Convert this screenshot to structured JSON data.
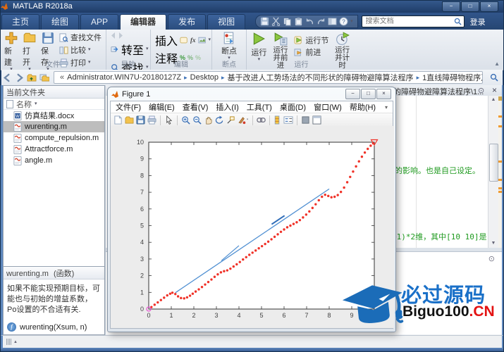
{
  "glyphs": {
    "min": "−",
    "max": "□",
    "close": "×",
    "dropdown": "▾",
    "sep": "▸",
    "laquo": "«",
    "overflow": "⊙",
    "collapse": "▲",
    "scroll_up": "▲",
    "scroll_down": "▼",
    "grip_up": "▲",
    "fx": "fx",
    "percent": "%",
    "help": "?"
  },
  "titlebar": {
    "title": "MATLAB R2018a"
  },
  "ribbon": {
    "tabs": [
      "主页",
      "绘图",
      "APP",
      "编辑器",
      "发布",
      "视图"
    ],
    "active_tab_index": 3,
    "search_placeholder": "搜索文档",
    "login": "登录",
    "file_group": {
      "label": "文件",
      "new": "新建",
      "open": "打开",
      "save": "保存",
      "find_files": "查找文件",
      "compare": "比较",
      "print": "打印"
    },
    "nav_group": {
      "label": "导航",
      "goto": "转至",
      "find": "查找"
    },
    "edit_group": {
      "label": "编辑",
      "insert": "插入",
      "comment": "注释",
      "indent": "缩进"
    },
    "bp_group": {
      "label": "断点",
      "breakpoints": "断点"
    },
    "run_group": {
      "label": "运行",
      "run": "运行",
      "run_advance": "运行并前进",
      "run_section": "运行节",
      "advance": "前进",
      "run_time": "运行并计时"
    }
  },
  "addressbar": {
    "segments": [
      "Administrator.WIN7U-20180127Z",
      "Desktop",
      "基于改进人工势场法的不同形状的障碍物避障算法程序",
      "1直线障碍物程序及结果"
    ]
  },
  "current_folder": {
    "title": "当前文件夹",
    "name_header": "名称",
    "files": [
      {
        "name": "仿真结果.docx",
        "type": "docx"
      },
      {
        "name": "wurenting.m",
        "type": "m",
        "selected": true
      },
      {
        "name": "compute_repulsion.m",
        "type": "m"
      },
      {
        "name": "Attractforce.m",
        "type": "m"
      },
      {
        "name": "angle.m",
        "type": "m"
      }
    ]
  },
  "details": {
    "file": "wurenting.m",
    "kind": "(函数)",
    "text": "如果不能实现预期目标，可能也与初始的增益系数，Po设置的不合适有关.",
    "signature": "wurenting(Xsum, n)"
  },
  "editor": {
    "tab_title": "的障碍物避障算法程序\\1...",
    "comment1": "的影响。也是自己设定。",
    "comment2": "+1)*2维，其中[10 10]是["
  },
  "figure_window": {
    "title": "Figure 1",
    "menu": [
      "文件(F)",
      "编辑(E)",
      "查看(V)",
      "插入(I)",
      "工具(T)",
      "桌面(D)",
      "窗口(W)",
      "帮助(H)"
    ]
  },
  "watermark": {
    "cn_text": "必过源码",
    "latin": "Biguo100",
    "tld": ".CN"
  },
  "chart_data": {
    "type": "line",
    "title": "",
    "xlabel": "",
    "ylabel": "",
    "xlim": [
      0,
      10
    ],
    "ylim": [
      0,
      10
    ],
    "xticks": [
      0,
      1,
      2,
      3,
      4,
      5,
      6,
      7,
      8,
      9,
      10
    ],
    "yticks": [
      0,
      1,
      2,
      3,
      4,
      5,
      6,
      7,
      8,
      9,
      10
    ],
    "grid": false,
    "legend": "none",
    "axis_color": "#333333",
    "series": [
      {
        "name": "planned-path",
        "type": "line",
        "color": "#4f8fd2",
        "width": 1.3,
        "points": [
          [
            1.18,
            0.98
          ],
          [
            8.0,
            7.2
          ]
        ]
      },
      {
        "name": "planned-path-branch",
        "type": "line",
        "color": "#4f8fd2",
        "width": 1.2,
        "points": [
          [
            3.22,
            2.9
          ],
          [
            4.0,
            3.8
          ]
        ]
      },
      {
        "name": "planned-path-overlap",
        "type": "line",
        "color": "#2f6db8",
        "width": 2,
        "points": [
          [
            5.45,
            5.08
          ],
          [
            6.02,
            5.6
          ]
        ]
      },
      {
        "name": "robot-trajectory",
        "type": "scatter",
        "color": "#f03228",
        "points": [
          [
            0.12,
            0.12
          ],
          [
            0.26,
            0.26
          ],
          [
            0.4,
            0.4
          ],
          [
            0.54,
            0.54
          ],
          [
            0.68,
            0.68
          ],
          [
            0.82,
            0.82
          ],
          [
            0.95,
            0.92
          ],
          [
            1.05,
            0.98
          ],
          [
            1.18,
            0.9
          ],
          [
            1.3,
            0.76
          ],
          [
            1.43,
            0.66
          ],
          [
            1.57,
            0.64
          ],
          [
            1.7,
            0.7
          ],
          [
            1.83,
            0.8
          ],
          [
            1.95,
            0.92
          ],
          [
            2.08,
            1.05
          ],
          [
            2.22,
            1.18
          ],
          [
            2.36,
            1.32
          ],
          [
            2.5,
            1.47
          ],
          [
            2.64,
            1.62
          ],
          [
            2.78,
            1.77
          ],
          [
            2.92,
            1.93
          ],
          [
            3.06,
            2.08
          ],
          [
            3.2,
            2.2
          ],
          [
            3.34,
            2.27
          ],
          [
            3.48,
            2.32
          ],
          [
            3.62,
            2.42
          ],
          [
            3.76,
            2.55
          ],
          [
            3.9,
            2.68
          ],
          [
            4.04,
            2.82
          ],
          [
            4.18,
            2.97
          ],
          [
            4.32,
            3.11
          ],
          [
            4.46,
            3.25
          ],
          [
            4.6,
            3.38
          ],
          [
            4.74,
            3.51
          ],
          [
            4.88,
            3.64
          ],
          [
            5.02,
            3.77
          ],
          [
            5.16,
            3.9
          ],
          [
            5.3,
            4.04
          ],
          [
            5.44,
            4.18
          ],
          [
            5.58,
            4.33
          ],
          [
            5.72,
            4.48
          ],
          [
            5.86,
            4.63
          ],
          [
            6.0,
            4.77
          ],
          [
            6.14,
            4.9
          ],
          [
            6.28,
            5.0
          ],
          [
            6.42,
            5.1
          ],
          [
            6.56,
            5.2
          ],
          [
            6.7,
            5.33
          ],
          [
            6.84,
            5.49
          ],
          [
            6.98,
            5.66
          ],
          [
            7.12,
            5.85
          ],
          [
            7.26,
            6.06
          ],
          [
            7.4,
            6.28
          ],
          [
            7.54,
            6.52
          ],
          [
            7.68,
            6.73
          ],
          [
            7.82,
            6.85
          ],
          [
            7.96,
            6.78
          ],
          [
            8.1,
            6.7
          ],
          [
            8.24,
            6.73
          ],
          [
            8.38,
            6.83
          ],
          [
            8.52,
            7.02
          ],
          [
            8.66,
            7.28
          ],
          [
            8.8,
            7.6
          ],
          [
            8.93,
            7.92
          ],
          [
            9.06,
            8.24
          ],
          [
            9.19,
            8.55
          ],
          [
            9.32,
            8.85
          ],
          [
            9.45,
            9.13
          ],
          [
            9.58,
            9.38
          ],
          [
            9.71,
            9.6
          ],
          [
            9.84,
            9.79
          ],
          [
            9.95,
            9.93
          ]
        ]
      }
    ],
    "markers": [
      {
        "name": "start-point",
        "shape": "circle",
        "color": "#e54fd0",
        "point": [
          0,
          0
        ]
      },
      {
        "name": "goal-point",
        "shape": "triangle-down",
        "color": "#f03228",
        "point": [
          10,
          10
        ]
      }
    ]
  }
}
